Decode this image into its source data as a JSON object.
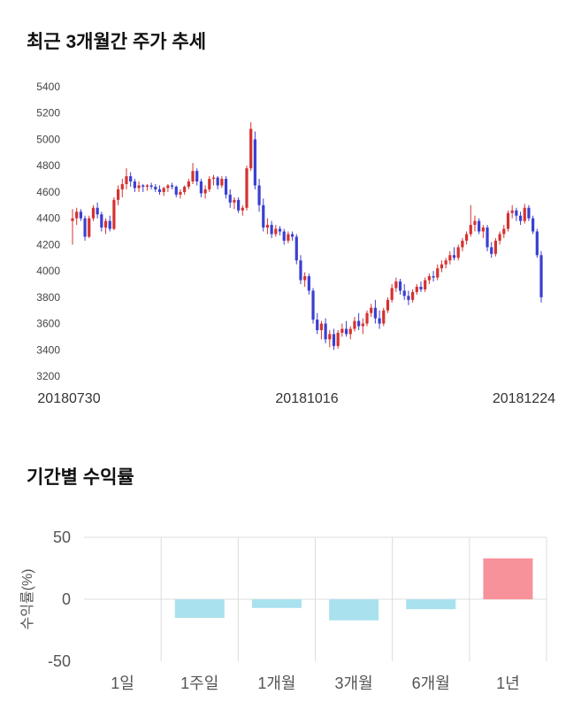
{
  "chart_data": [
    {
      "type": "candlestick",
      "title": "최근 3개월간 주가 추세",
      "ylim": [
        3200,
        5400
      ],
      "yticks": [
        3200,
        3400,
        3600,
        3800,
        4000,
        4200,
        4400,
        4600,
        4800,
        5000,
        5200,
        5400
      ],
      "x_axis_labels": [
        "20180730",
        "20181016",
        "20181224"
      ],
      "up_color": "#d43230",
      "down_color": "#3a3fd0",
      "axis_text_color": "#444444",
      "date_text_color": "#333333",
      "candles": [
        [
          4380,
          4470,
          4200,
          4400
        ],
        [
          4400,
          4480,
          4350,
          4450
        ],
        [
          4450,
          4470,
          4380,
          4400
        ],
        [
          4400,
          4420,
          4230,
          4260
        ],
        [
          4260,
          4420,
          4250,
          4400
        ],
        [
          4400,
          4500,
          4380,
          4480
        ],
        [
          4480,
          4520,
          4400,
          4430
        ],
        [
          4430,
          4450,
          4300,
          4330
        ],
        [
          4330,
          4400,
          4280,
          4380
        ],
        [
          4380,
          4420,
          4300,
          4320
        ],
        [
          4320,
          4560,
          4310,
          4540
        ],
        [
          4540,
          4650,
          4500,
          4620
        ],
        [
          4620,
          4700,
          4560,
          4660
        ],
        [
          4660,
          4780,
          4620,
          4720
        ],
        [
          4720,
          4750,
          4640,
          4680
        ],
        [
          4680,
          4700,
          4600,
          4630
        ],
        [
          4630,
          4680,
          4600,
          4650
        ],
        [
          4650,
          4660,
          4600,
          4640
        ],
        [
          4640,
          4660,
          4610,
          4650
        ],
        [
          4650,
          4670,
          4620,
          4640
        ],
        [
          4640,
          4660,
          4600,
          4620
        ],
        [
          4620,
          4650,
          4580,
          4600
        ],
        [
          4600,
          4640,
          4570,
          4630
        ],
        [
          4630,
          4660,
          4600,
          4650
        ],
        [
          4650,
          4670,
          4620,
          4640
        ],
        [
          4640,
          4650,
          4560,
          4580
        ],
        [
          4580,
          4620,
          4550,
          4600
        ],
        [
          4600,
          4650,
          4580,
          4640
        ],
        [
          4640,
          4700,
          4620,
          4680
        ],
        [
          4680,
          4820,
          4660,
          4760
        ],
        [
          4760,
          4780,
          4650,
          4680
        ],
        [
          4680,
          4700,
          4560,
          4590
        ],
        [
          4590,
          4650,
          4550,
          4620
        ],
        [
          4620,
          4720,
          4600,
          4700
        ],
        [
          4700,
          4730,
          4650,
          4710
        ],
        [
          4710,
          4720,
          4620,
          4650
        ],
        [
          4650,
          4720,
          4630,
          4700
        ],
        [
          4700,
          4720,
          4550,
          4580
        ],
        [
          4580,
          4620,
          4480,
          4520
        ],
        [
          4520,
          4560,
          4470,
          4540
        ],
        [
          4540,
          4560,
          4440,
          4460
        ],
        [
          4460,
          4500,
          4420,
          4480
        ],
        [
          4480,
          4800,
          4460,
          4780
        ],
        [
          4780,
          5130,
          4760,
          5080
        ],
        [
          5000,
          5060,
          4620,
          4650
        ],
        [
          4650,
          4700,
          4450,
          4500
        ],
        [
          4500,
          4550,
          4300,
          4330
        ],
        [
          4330,
          4400,
          4280,
          4350
        ],
        [
          4350,
          4380,
          4250,
          4280
        ],
        [
          4280,
          4350,
          4260,
          4320
        ],
        [
          4320,
          4340,
          4270,
          4300
        ],
        [
          4300,
          4320,
          4200,
          4230
        ],
        [
          4230,
          4300,
          4210,
          4280
        ],
        [
          4280,
          4300,
          4230,
          4260
        ],
        [
          4260,
          4280,
          4050,
          4080
        ],
        [
          4080,
          4120,
          3900,
          3930
        ],
        [
          3930,
          3990,
          3880,
          3960
        ],
        [
          3960,
          3980,
          3820,
          3850
        ],
        [
          3850,
          3870,
          3600,
          3630
        ],
        [
          3630,
          3680,
          3520,
          3550
        ],
        [
          3550,
          3620,
          3480,
          3600
        ],
        [
          3600,
          3640,
          3450,
          3480
        ],
        [
          3480,
          3550,
          3420,
          3520
        ],
        [
          3520,
          3560,
          3400,
          3430
        ],
        [
          3430,
          3550,
          3410,
          3530
        ],
        [
          3530,
          3600,
          3500,
          3560
        ],
        [
          3560,
          3620,
          3500,
          3520
        ],
        [
          3520,
          3580,
          3480,
          3560
        ],
        [
          3560,
          3650,
          3540,
          3620
        ],
        [
          3620,
          3680,
          3550,
          3580
        ],
        [
          3580,
          3640,
          3520,
          3600
        ],
        [
          3600,
          3700,
          3580,
          3680
        ],
        [
          3680,
          3750,
          3650,
          3720
        ],
        [
          3720,
          3780,
          3600,
          3640
        ],
        [
          3640,
          3700,
          3560,
          3600
        ],
        [
          3600,
          3720,
          3580,
          3700
        ],
        [
          3700,
          3800,
          3680,
          3780
        ],
        [
          3780,
          3900,
          3760,
          3870
        ],
        [
          3870,
          3950,
          3840,
          3920
        ],
        [
          3920,
          3940,
          3820,
          3850
        ],
        [
          3850,
          3900,
          3780,
          3810
        ],
        [
          3810,
          3850,
          3740,
          3780
        ],
        [
          3780,
          3860,
          3760,
          3840
        ],
        [
          3840,
          3900,
          3820,
          3880
        ],
        [
          3880,
          3920,
          3840,
          3860
        ],
        [
          3860,
          3950,
          3840,
          3930
        ],
        [
          3930,
          3980,
          3900,
          3960
        ],
        [
          3960,
          4000,
          3920,
          3950
        ],
        [
          3950,
          4050,
          3930,
          4020
        ],
        [
          4020,
          4080,
          3990,
          4050
        ],
        [
          4050,
          4100,
          4020,
          4080
        ],
        [
          4080,
          4150,
          4050,
          4120
        ],
        [
          4120,
          4180,
          4080,
          4100
        ],
        [
          4100,
          4200,
          4080,
          4180
        ],
        [
          4180,
          4250,
          4150,
          4230
        ],
        [
          4230,
          4300,
          4200,
          4280
        ],
        [
          4280,
          4500,
          4260,
          4350
        ],
        [
          4350,
          4420,
          4300,
          4380
        ],
        [
          4380,
          4400,
          4280,
          4300
        ],
        [
          4300,
          4350,
          4250,
          4330
        ],
        [
          4330,
          4350,
          4150,
          4180
        ],
        [
          4180,
          4220,
          4100,
          4130
        ],
        [
          4130,
          4250,
          4110,
          4230
        ],
        [
          4230,
          4300,
          4200,
          4280
        ],
        [
          4280,
          4350,
          4250,
          4320
        ],
        [
          4320,
          4460,
          4300,
          4440
        ],
        [
          4440,
          4500,
          4400,
          4460
        ],
        [
          4460,
          4480,
          4380,
          4420
        ],
        [
          4420,
          4450,
          4350,
          4380
        ],
        [
          4380,
          4510,
          4360,
          4480
        ],
        [
          4480,
          4500,
          4380,
          4400
        ],
        [
          4400,
          4420,
          4280,
          4300
        ],
        [
          4300,
          4320,
          4100,
          4120
        ],
        [
          4120,
          4150,
          3760,
          3800
        ]
      ]
    },
    {
      "type": "bar",
      "title": "기간별 수익률",
      "categories": [
        "1일",
        "1주일",
        "1개월",
        "3개월",
        "6개월",
        "1년"
      ],
      "values": [
        0,
        -15,
        -7,
        -17,
        -8,
        33
      ],
      "ylabel": "수익률(%)",
      "yticks": [
        50,
        0,
        -50
      ],
      "grid_hlines": [
        50,
        0
      ],
      "ylim": [
        -50,
        50
      ],
      "negative_color": "#a9e1ee",
      "positive_color": "#f7929b",
      "grid_color": "#dcdcdc",
      "axis_text_color": "#555555"
    }
  ]
}
